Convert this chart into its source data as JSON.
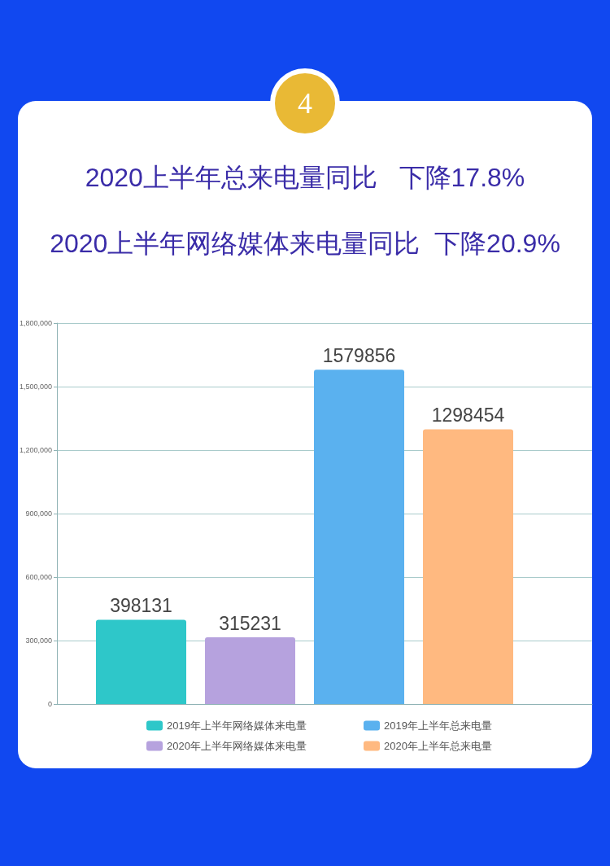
{
  "chart_data": {
    "type": "bar",
    "title": "2020上半年总来电量同比   下降17.8%",
    "subtitle": "2020上半年网络媒体来电量同比  下降20.9%",
    "annotations": [
      "4"
    ],
    "categories": [
      null,
      null,
      null,
      null
    ],
    "series": [
      {
        "name": "2019年上半年网络媒体来电量",
        "color": "#2ec7c9",
        "values": [
          398131,
          null,
          null,
          null
        ]
      },
      {
        "name": "2020年上半年网络媒体来电量",
        "color": "#b6a2de",
        "values": [
          null,
          315231,
          null,
          null
        ]
      },
      {
        "name": "2019年上半年总来电量",
        "color": "#5ab1ef",
        "values": [
          null,
          null,
          1579856,
          null
        ]
      },
      {
        "name": "2020年上半年总来电量",
        "color": "#ffb980",
        "values": [
          null,
          null,
          null,
          1298454
        ]
      }
    ],
    "ylim": [
      0,
      1800000
    ],
    "yticks": [
      0,
      {
        "value": 300000,
        "label": "300,000"
      },
      {
        "value": 600000,
        "label": "600,000"
      },
      {
        "value": 900000,
        "label": "900,000"
      },
      {
        "value": 1200000,
        "label": "1,200,000"
      },
      {
        "value": 1500000,
        "label": "1,500,000"
      },
      {
        "value": 1800000,
        "label": "1,800,000"
      }
    ],
    "grid": "y",
    "legend": "bottom",
    "data_labels": true
  }
}
